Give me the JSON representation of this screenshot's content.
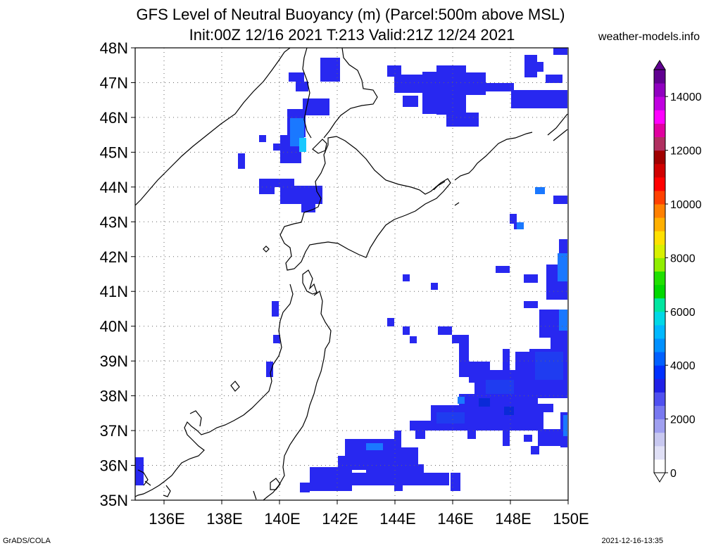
{
  "title_line1": "GFS Level of Neutral Buoyancy (m) (Parcel:500m above MSL)",
  "title_line2": "Init:00Z 12/16 2021 T:213 Valid:21Z 12/24 2021",
  "site": "weather-models.info",
  "credit": "GrADS/COLA",
  "timestamp": "2021-12-16-13:35",
  "map": {
    "lat_labels": [
      "35N",
      "36N",
      "37N",
      "38N",
      "39N",
      "40N",
      "41N",
      "42N",
      "43N",
      "44N",
      "45N",
      "46N",
      "47N",
      "48N"
    ],
    "lon_labels": [
      "136E",
      "138E",
      "140E",
      "142E",
      "144E",
      "146E",
      "148E",
      "150E"
    ],
    "lat_range": [
      35,
      48
    ],
    "lon_range": [
      135,
      150
    ],
    "grid": "dotted"
  },
  "colorbar": {
    "labels": [
      "0",
      "2000",
      "4000",
      "6000",
      "8000",
      "10000",
      "12000",
      "14000"
    ],
    "min": 0,
    "max": 15000,
    "colors": [
      "#ffffff",
      "#e0e0f6",
      "#c8c8f0",
      "#a0a0f0",
      "#7878f0",
      "#5050f0",
      "#2020e6",
      "#0030ff",
      "#0060ff",
      "#0090ff",
      "#00b8ff",
      "#00d8e6",
      "#00e6a0",
      "#00d800",
      "#20e000",
      "#90ee00",
      "#d8f000",
      "#ffe000",
      "#ffb000",
      "#ff8000",
      "#ff4000",
      "#ff0000",
      "#d00000",
      "#a00000",
      "#b03060",
      "#e000a0",
      "#ff00ff",
      "#c000e0",
      "#9000c0",
      "#600090"
    ]
  },
  "icons": {
    "colorbar_top": "triangle-up-icon",
    "colorbar_bottom": "triangle-down-icon"
  }
}
